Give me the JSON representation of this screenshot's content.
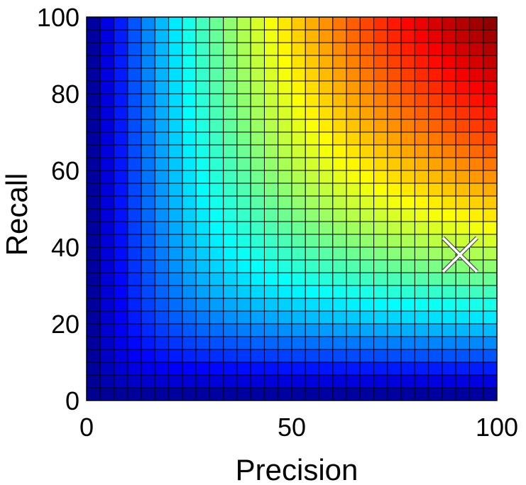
{
  "chart_data": {
    "type": "heatmap",
    "xlabel": "Precision",
    "ylabel": "Recall",
    "xlim": [
      0,
      100
    ],
    "ylim": [
      0,
      100
    ],
    "xticks": [
      0,
      50,
      100
    ],
    "yticks": [
      0,
      20,
      40,
      60,
      80,
      100
    ],
    "x_tick_labels": [
      "0",
      "50",
      "100"
    ],
    "y_tick_labels": [
      "0",
      "20",
      "40",
      "60",
      "80",
      "100"
    ],
    "grid_cells": [
      30,
      30
    ],
    "cell_value": "harmonic mean of precision and recall",
    "colormap": "jet",
    "grid": true,
    "grid_color": "#000000",
    "marker": {
      "shape": "x",
      "color": "#ffffff",
      "x": 91,
      "y": 38
    }
  }
}
